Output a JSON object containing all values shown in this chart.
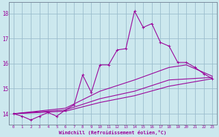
{
  "xlabel": "Windchill (Refroidissement éolien,°C)",
  "bg_color": "#cce8ee",
  "line_color": "#990099",
  "grid_color": "#99bbcc",
  "x_ticks": [
    0,
    1,
    2,
    3,
    4,
    5,
    6,
    7,
    8,
    9,
    10,
    11,
    12,
    13,
    14,
    15,
    16,
    17,
    18,
    19,
    20,
    21,
    22,
    23
  ],
  "y_ticks": [
    14,
    15,
    16,
    17,
    18
  ],
  "ylim": [
    13.55,
    18.45
  ],
  "xlim": [
    -0.5,
    23.5
  ],
  "series1": [
    [
      0,
      14.0
    ],
    [
      1,
      13.9
    ],
    [
      2,
      13.75
    ],
    [
      3,
      13.9
    ],
    [
      4,
      14.05
    ],
    [
      5,
      13.9
    ],
    [
      6,
      14.15
    ],
    [
      7,
      14.35
    ],
    [
      8,
      15.55
    ],
    [
      9,
      14.85
    ],
    [
      10,
      15.95
    ],
    [
      11,
      15.95
    ],
    [
      12,
      16.55
    ],
    [
      13,
      16.6
    ],
    [
      14,
      18.1
    ],
    [
      15,
      17.45
    ],
    [
      16,
      17.6
    ],
    [
      17,
      16.85
    ],
    [
      18,
      16.7
    ],
    [
      19,
      16.05
    ],
    [
      20,
      16.05
    ],
    [
      21,
      15.85
    ],
    [
      22,
      15.6
    ],
    [
      23,
      15.4
    ]
  ],
  "series2": [
    [
      0,
      14.0
    ],
    [
      6,
      14.22
    ],
    [
      10,
      14.9
    ],
    [
      14,
      15.35
    ],
    [
      18,
      15.85
    ],
    [
      20,
      15.95
    ],
    [
      23,
      15.5
    ]
  ],
  "series3": [
    [
      0,
      14.0
    ],
    [
      6,
      14.15
    ],
    [
      10,
      14.6
    ],
    [
      14,
      14.9
    ],
    [
      18,
      15.35
    ],
    [
      23,
      15.45
    ]
  ],
  "series4": [
    [
      0,
      14.0
    ],
    [
      6,
      14.1
    ],
    [
      10,
      14.45
    ],
    [
      14,
      14.72
    ],
    [
      18,
      15.1
    ],
    [
      23,
      15.4
    ]
  ]
}
